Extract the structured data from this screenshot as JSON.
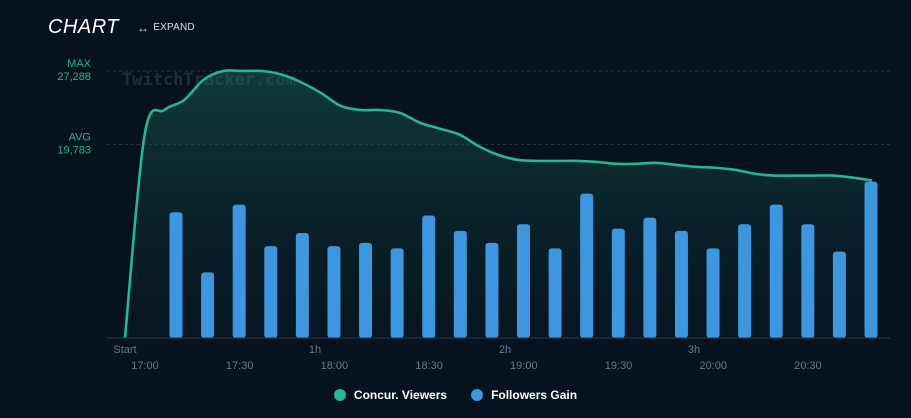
{
  "header": {
    "title": "CHART",
    "expand_label": "EXPAND",
    "expand_icon": "↔"
  },
  "colors": {
    "viewers": "#27b592",
    "followers": "#3e96de",
    "axis_text": "#6d7987",
    "ref_text": "#27b592",
    "background": "#06121e"
  },
  "watermark": "TwitchTracker.com",
  "chart_data": {
    "type": "bar+line",
    "title": "CHART",
    "reference_lines": [
      {
        "name": "MAX",
        "value": 27288,
        "label": "27,288"
      },
      {
        "name": "AVG",
        "value": 19783,
        "label": "19,783"
      }
    ],
    "ylim": [
      0,
      27288
    ],
    "x_duration_labels": [
      "Start",
      "1h",
      "2h",
      "3h"
    ],
    "x_time_labels": [
      "17:00",
      "17:30",
      "18:00",
      "18:30",
      "19:00",
      "19:30",
      "20:00",
      "20:30"
    ],
    "series": [
      {
        "name": "Concur. Viewers",
        "type": "area-line",
        "values": [
          0,
          20800,
          23300,
          24300,
          26400,
          27288,
          27288,
          27288,
          26900,
          26100,
          25000,
          23700,
          23300,
          23300,
          23000,
          22000,
          21400,
          20800,
          19600,
          18700,
          18200,
          18100,
          18100,
          18100,
          18000,
          17800,
          17800,
          17900,
          17700,
          17500,
          17400,
          17200,
          16800,
          16600,
          16600,
          16600,
          16600,
          16400,
          16100
        ]
      },
      {
        "name": "Followers Gain",
        "type": "bar",
        "values": [
          115,
          60,
          122,
          84,
          96,
          84,
          87,
          82,
          112,
          98,
          87,
          104,
          82,
          132,
          100,
          110,
          98,
          82,
          104,
          122,
          104,
          79,
          143
        ]
      }
    ]
  },
  "legend": [
    {
      "label": "Concur. Viewers"
    },
    {
      "label": "Followers Gain"
    }
  ]
}
